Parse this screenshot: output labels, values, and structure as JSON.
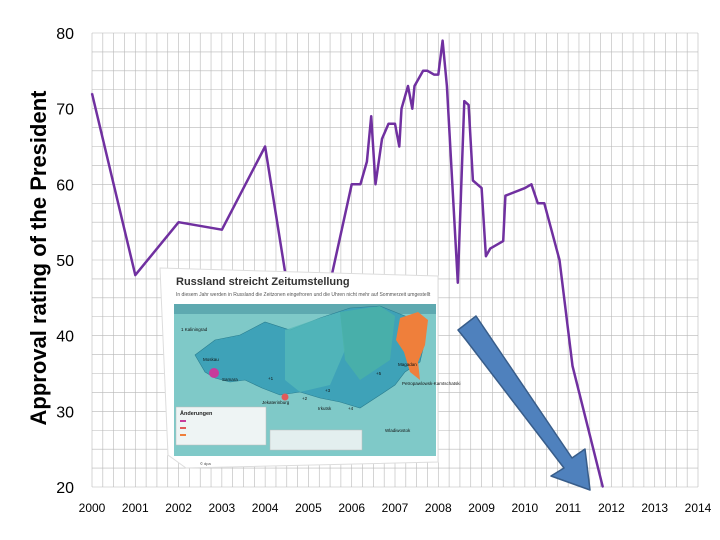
{
  "chart_data": {
    "type": "line",
    "ylabel": "Approval rating of the President",
    "xlabel": "",
    "ylim": [
      20,
      80
    ],
    "xlim": [
      2000,
      2014
    ],
    "yticks": [
      20,
      30,
      40,
      50,
      60,
      70,
      80
    ],
    "xticks": [
      2000,
      2001,
      2002,
      2003,
      2004,
      2005,
      2006,
      2007,
      2008,
      2009,
      2010,
      2011,
      2012,
      2013,
      2014
    ],
    "grid": true,
    "legend": "none",
    "line_color": "#7030a0",
    "series": [
      {
        "x": [
          2000.0,
          2001.0,
          2002.0,
          2003.0,
          2004.0,
          2004.5,
          2005.5,
          2006.0,
          2006.2,
          2006.35,
          2006.45,
          2006.55,
          2006.7,
          2006.85,
          2007.0,
          2007.1,
          2007.15,
          2007.3,
          2007.4,
          2007.45,
          2007.55,
          2007.65,
          2007.75,
          2007.9,
          2008.0,
          2008.1,
          2008.2,
          2008.45,
          2008.6,
          2008.7,
          2008.8,
          2009.0,
          2009.1,
          2009.2,
          2009.5,
          2009.55,
          2010.0,
          2010.15,
          2010.3,
          2010.45,
          2010.8,
          2011.1,
          2011.8
        ],
        "y": [
          72,
          48,
          55,
          54,
          65,
          47,
          47,
          60,
          60,
          63,
          69,
          60,
          66,
          68,
          68,
          65,
          70,
          73,
          70,
          73,
          74,
          75,
          75,
          74.5,
          74.5,
          79,
          73,
          47,
          71,
          70.5,
          60.5,
          59.5,
          50.5,
          51.5,
          52.5,
          58.5,
          59.5,
          60,
          57.5,
          57.5,
          50,
          36,
          20
        ]
      }
    ],
    "overlays": {
      "map_title": "Russland streicht Zeitumstellung",
      "map_subtitle": "In diesem Jahr werden in Russland die Zeitzonen eingefroren und die Uhren nicht mehr auf Sommerzeit umgestellt",
      "map_labels": [
        "1 Kaliningrad",
        "Moskau",
        "Samara",
        "+1",
        "+2",
        "Jekaterinburg",
        "+3",
        "+4",
        "+5",
        "Irkutsk",
        "Magadan",
        "Wladiwostok",
        "Petropawlowsk-Kamtschatski"
      ],
      "map_legend_title": "Änderungen",
      "map_credit": "© dpa",
      "arrow_color": "#4f81bd"
    }
  }
}
